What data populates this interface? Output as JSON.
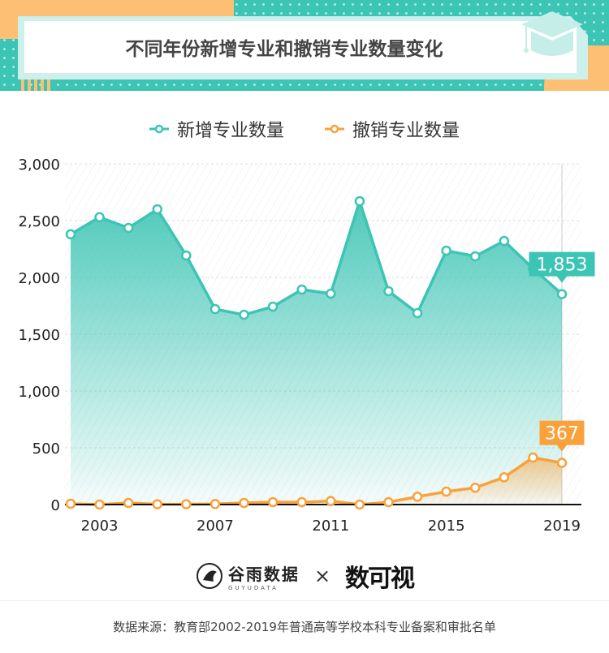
{
  "header": {
    "title": "不同年份新增专业和撤销专业数量变化",
    "icon": "graduation-cap-icon"
  },
  "colors": {
    "teal": "#3cc4b4",
    "orange": "#f9a13a",
    "band_orange": "#fcbf74"
  },
  "chart_data": {
    "type": "area",
    "title": "不同年份新增专业和撤销专业数量变化",
    "x": [
      2002,
      2003,
      2004,
      2005,
      2006,
      2007,
      2008,
      2009,
      2010,
      2011,
      2012,
      2013,
      2014,
      2015,
      2016,
      2017,
      2018,
      2019
    ],
    "xticks": [
      "2003",
      "2007",
      "2011",
      "2015",
      "2019"
    ],
    "yticks": [
      "0",
      "500",
      "1,000",
      "1,500",
      "2,000",
      "2,500",
      "3,000"
    ],
    "ylim": [
      0,
      3000
    ],
    "grid": true,
    "legend_placement": "top",
    "series": [
      {
        "name": "新增专业数量",
        "color": "#3cc4b4",
        "values": [
          2380,
          2530,
          2436,
          2600,
          2193,
          1721,
          1671,
          1743,
          1893,
          1857,
          2671,
          1879,
          1686,
          2236,
          2186,
          2321,
          2079,
          1853
        ]
      },
      {
        "name": "撤销专业数量",
        "color": "#f9a13a",
        "values": [
          7,
          0,
          14,
          3,
          3,
          5,
          14,
          21,
          21,
          31,
          0,
          21,
          69,
          114,
          148,
          240,
          414,
          367
        ]
      }
    ],
    "annotations": [
      {
        "series": 0,
        "label": "1,853"
      },
      {
        "series": 1,
        "label": "367"
      }
    ]
  },
  "footer": {
    "logo1_name": "谷雨数据",
    "logo1_sub": "GUYUDATA",
    "times": "×",
    "logo2": "数可视",
    "source": "数据来源：教育部2002-2019年普通高等学校本科专业备案和审批名单"
  }
}
